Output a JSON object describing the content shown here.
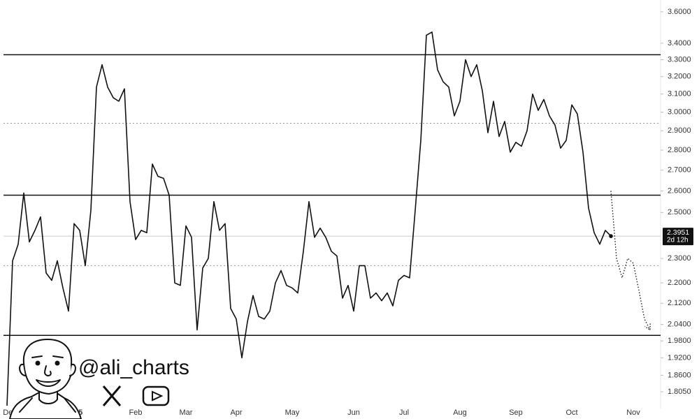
{
  "chart_data": {
    "type": "line",
    "log_scale": true,
    "watermark": "@ali_charts",
    "countdown": "2d 12h",
    "current_price": 2.3951,
    "categories": [
      "Dec",
      null,
      null,
      null,
      null,
      null,
      null,
      null,
      null,
      null,
      null,
      null,
      "2025",
      null,
      null,
      null,
      null,
      null,
      null,
      null,
      null,
      null,
      null,
      "Feb",
      null,
      null,
      null,
      null,
      null,
      null,
      null,
      null,
      "Mar",
      null,
      null,
      null,
      null,
      null,
      null,
      null,
      null,
      "Apr",
      null,
      null,
      null,
      null,
      null,
      null,
      null,
      null,
      null,
      "May",
      null,
      null,
      null,
      null,
      null,
      null,
      null,
      null,
      null,
      null,
      "Jun",
      null,
      null,
      null,
      null,
      null,
      null,
      null,
      null,
      "Jul",
      null,
      null,
      null,
      null,
      null,
      null,
      null,
      null,
      null,
      "Aug",
      null,
      null,
      null,
      null,
      null,
      null,
      null,
      null,
      null,
      "Sep",
      null,
      null,
      null,
      null,
      null,
      null,
      null,
      null,
      null,
      "Oct",
      null,
      null,
      null,
      null,
      null,
      null,
      null,
      null,
      null,
      null,
      "Nov",
      null,
      null,
      null
    ],
    "series": [
      {
        "color": "#111111",
        "style": "solid",
        "values": [
          1.76,
          2.29,
          2.36,
          2.59,
          2.37,
          2.42,
          2.48,
          2.24,
          2.21,
          2.29,
          2.18,
          2.09,
          2.45,
          2.42,
          2.27,
          2.51,
          3.14,
          3.27,
          3.14,
          3.08,
          3.06,
          3.13,
          2.55,
          2.38,
          2.42,
          2.41,
          2.73,
          2.67,
          2.66,
          2.58,
          2.2,
          2.19,
          2.44,
          2.39,
          2.02,
          2.26,
          2.3,
          2.55,
          2.42,
          2.45,
          2.1,
          2.06,
          1.92,
          2.05,
          2.15,
          2.07,
          2.06,
          2.09,
          2.2,
          2.25,
          2.19,
          2.18,
          2.16,
          2.33,
          2.55,
          2.39,
          2.43,
          2.39,
          2.33,
          2.31,
          2.14,
          2.19,
          2.09,
          2.27,
          2.27,
          2.14,
          2.16,
          2.13,
          2.16,
          2.11,
          2.21,
          2.23,
          2.22,
          2.51,
          2.85,
          3.45,
          3.47,
          3.24,
          3.17,
          3.14,
          2.98,
          3.06,
          3.3,
          3.2,
          3.27,
          3.12,
          2.89,
          3.06,
          2.87,
          2.95,
          2.79,
          2.84,
          2.82,
          2.9,
          3.1,
          3.01,
          3.07,
          2.98,
          2.93,
          2.81,
          2.85,
          3.04,
          2.99,
          2.79,
          2.52,
          2.41,
          2.36,
          2.42,
          2.3951,
          null,
          null,
          null,
          null,
          null,
          null,
          null
        ]
      },
      {
        "color": "#111111",
        "style": "dotted",
        "values": [
          null,
          null,
          null,
          null,
          null,
          null,
          null,
          null,
          null,
          null,
          null,
          null,
          null,
          null,
          null,
          null,
          null,
          null,
          null,
          null,
          null,
          null,
          null,
          null,
          null,
          null,
          null,
          null,
          null,
          null,
          null,
          null,
          null,
          null,
          null,
          null,
          null,
          null,
          null,
          null,
          null,
          null,
          null,
          null,
          null,
          null,
          null,
          null,
          null,
          null,
          null,
          null,
          null,
          null,
          null,
          null,
          null,
          null,
          null,
          null,
          null,
          null,
          null,
          null,
          null,
          null,
          null,
          null,
          null,
          null,
          null,
          null,
          null,
          null,
          null,
          null,
          null,
          null,
          null,
          null,
          null,
          null,
          null,
          null,
          null,
          null,
          null,
          null,
          null,
          null,
          null,
          null,
          null,
          null,
          null,
          null,
          null,
          null,
          null,
          null,
          null,
          null,
          null,
          null,
          null,
          null,
          null,
          null,
          2.6,
          2.3,
          2.22,
          2.3,
          2.28,
          2.17,
          2.06,
          2.02
        ]
      }
    ],
    "levels": [
      {
        "value": 3.33,
        "style": "solid"
      },
      {
        "value": 2.94,
        "style": "dotted"
      },
      {
        "value": 2.58,
        "style": "solid"
      },
      {
        "value": 2.27,
        "style": "dotted"
      },
      {
        "value": 2.0,
        "style": "solid"
      }
    ],
    "ylim": [
      1.751,
      3.678
    ],
    "yticks": [
      {
        "value": 3.6,
        "label": "3.6000"
      },
      {
        "value": 3.4,
        "label": "3.4000"
      },
      {
        "value": 3.3,
        "label": "3.3000"
      },
      {
        "value": 3.2,
        "label": "3.2000"
      },
      {
        "value": 3.1,
        "label": "3.1000"
      },
      {
        "value": 3.0,
        "label": "3.0000"
      },
      {
        "value": 2.9,
        "label": "2.9000"
      },
      {
        "value": 2.8,
        "label": "2.8000"
      },
      {
        "value": 2.7,
        "label": "2.7000"
      },
      {
        "value": 2.6,
        "label": "2.6000"
      },
      {
        "value": 2.5,
        "label": "2.5000"
      },
      {
        "value": 2.3,
        "label": "2.3000"
      },
      {
        "value": 2.2,
        "label": "2.2000"
      },
      {
        "value": 2.12,
        "label": "2.1200"
      },
      {
        "value": 2.04,
        "label": "2.0400"
      },
      {
        "value": 1.98,
        "label": "1.9800"
      },
      {
        "value": 1.92,
        "label": "1.9200"
      },
      {
        "value": 1.86,
        "label": "1.8600"
      },
      {
        "value": 1.805,
        "label": "1.8050"
      }
    ]
  }
}
